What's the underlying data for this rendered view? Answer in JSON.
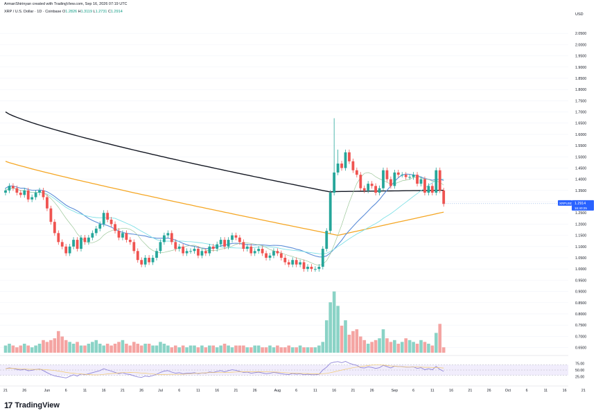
{
  "header": {
    "credit": "ArmanShirinyan created with TradingView.com, Sep 16, 2026 07:19 UTC",
    "symbol": "XRP / U.S. Dollar · 1D · Coinbase",
    "o_label": "O",
    "o_value": "1.2826",
    "h_label": "H",
    "h_value": "1.3119",
    "l_label": "L",
    "l_value": "1.2731",
    "c_label": "C",
    "c_value": "1.2914"
  },
  "footer": {
    "logo_text": "TradingView"
  },
  "colors": {
    "up": "#26a69a",
    "down": "#ef5350",
    "ma_black": "#131722",
    "ma_orange": "#f5a623",
    "ma_blue": "#5b8dd8",
    "ma_cyan": "#7fe0e6",
    "ma_green": "#9cc79a",
    "rsi": "#8e84d8"
  },
  "chart_data": {
    "type": "candlestick",
    "price_axis": {
      "currency": "USD",
      "ticks": [
        "0.6500",
        "0.7000",
        "0.7500",
        "0.8000",
        "0.8500",
        "0.9000",
        "0.9500",
        "1.0000",
        "1.0500",
        "1.1000",
        "1.1500",
        "1.2000",
        "1.2500",
        "1.3000",
        "1.3500",
        "1.4000",
        "1.4500",
        "1.5000",
        "1.5500",
        "1.6000",
        "1.6500",
        "1.7000",
        "1.7500",
        "1.8000",
        "1.8500",
        "1.9000",
        "1.9500",
        "2.0000",
        "2.0500"
      ],
      "range": [
        0.63,
        2.1
      ]
    },
    "last_price": {
      "label": "XRPUSD",
      "value": "1.2914",
      "countdown": "16:40:25"
    },
    "rsi_axis": {
      "ticks": [
        "75.00",
        "50.00",
        "25.00"
      ],
      "range": [
        0,
        100
      ],
      "upper_band": 70,
      "lower_band": 30
    },
    "time_axis": [
      {
        "label": "21",
        "i": 0
      },
      {
        "label": "26",
        "i": 5
      },
      {
        "label": "Jun",
        "i": 11
      },
      {
        "label": "6",
        "i": 16
      },
      {
        "label": "11",
        "i": 21
      },
      {
        "label": "16",
        "i": 26
      },
      {
        "label": "21",
        "i": 31
      },
      {
        "label": "26",
        "i": 36
      },
      {
        "label": "Jul",
        "i": 41
      },
      {
        "label": "6",
        "i": 46
      },
      {
        "label": "11",
        "i": 51
      },
      {
        "label": "16",
        "i": 56
      },
      {
        "label": "21",
        "i": 61
      },
      {
        "label": "26",
        "i": 66
      },
      {
        "label": "Aug",
        "i": 72
      },
      {
        "label": "6",
        "i": 77
      },
      {
        "label": "11",
        "i": 82
      },
      {
        "label": "16",
        "i": 87
      },
      {
        "label": "21",
        "i": 92
      },
      {
        "label": "26",
        "i": 97
      },
      {
        "label": "Sep",
        "i": 103
      },
      {
        "label": "6",
        "i": 108
      },
      {
        "label": "11",
        "i": 113
      },
      {
        "label": "16",
        "i": 118
      },
      {
        "label": "21",
        "i": 123
      },
      {
        "label": "26",
        "i": 128
      },
      {
        "label": "Oct",
        "i": 133
      },
      {
        "label": "6",
        "i": 138
      },
      {
        "label": "11",
        "i": 143
      },
      {
        "label": "16",
        "i": 148
      },
      {
        "label": "21",
        "i": 153
      }
    ],
    "closes": [
      1.35,
      1.37,
      1.36,
      1.34,
      1.33,
      1.35,
      1.31,
      1.32,
      1.34,
      1.35,
      1.32,
      1.27,
      1.21,
      1.16,
      1.12,
      1.1,
      1.07,
      1.1,
      1.13,
      1.09,
      1.14,
      1.12,
      1.14,
      1.16,
      1.18,
      1.2,
      1.25,
      1.22,
      1.2,
      1.17,
      1.14,
      1.16,
      1.13,
      1.12,
      1.08,
      1.04,
      1.02,
      1.05,
      1.03,
      1.05,
      1.08,
      1.12,
      1.15,
      1.16,
      1.12,
      1.09,
      1.1,
      1.07,
      1.08,
      1.08,
      1.09,
      1.06,
      1.08,
      1.07,
      1.1,
      1.09,
      1.11,
      1.13,
      1.1,
      1.13,
      1.15,
      1.14,
      1.12,
      1.09,
      1.1,
      1.07,
      1.08,
      1.09,
      1.07,
      1.05,
      1.06,
      1.08,
      1.07,
      1.05,
      1.03,
      1.02,
      1.04,
      1.02,
      1.03,
      1.0,
      1.01,
      1.0,
      1.0,
      1.01,
      1.09,
      1.17,
      1.34,
      1.43,
      1.47,
      1.45,
      1.52,
      1.48,
      1.44,
      1.42,
      1.36,
      1.35,
      1.38,
      1.37,
      1.34,
      1.36,
      1.44,
      1.4,
      1.37,
      1.43,
      1.42,
      1.42,
      1.41,
      1.41,
      1.42,
      1.38,
      1.4,
      1.34,
      1.37,
      1.34,
      1.44,
      1.35,
      1.29
    ],
    "volumes": [
      4,
      5,
      4,
      3,
      4,
      5,
      4,
      3,
      4,
      5,
      7,
      6,
      7,
      8,
      12,
      9,
      7,
      6,
      5,
      6,
      4,
      4,
      5,
      6,
      7,
      5,
      4,
      5,
      4,
      5,
      6,
      7,
      5,
      4,
      6,
      5,
      4,
      5,
      5,
      4,
      4,
      6,
      5,
      4,
      3,
      4,
      3,
      4,
      3,
      4,
      4,
      3,
      4,
      3,
      4,
      4,
      3,
      4,
      5,
      4,
      3,
      4,
      4,
      4,
      3,
      3,
      4,
      4,
      3,
      3,
      4,
      3,
      4,
      3,
      3,
      4,
      3,
      3,
      4,
      3,
      3,
      3,
      3,
      4,
      6,
      18,
      28,
      34,
      26,
      15,
      18,
      10,
      12,
      13,
      9,
      7,
      5,
      6,
      7,
      8,
      13,
      8,
      6,
      7,
      5,
      6,
      8,
      7,
      6,
      5,
      7,
      6,
      5,
      4,
      11,
      16,
      3
    ],
    "rsi": [
      55,
      58,
      56,
      52,
      50,
      53,
      47,
      49,
      52,
      54,
      48,
      40,
      33,
      28,
      25,
      23,
      20,
      26,
      32,
      27,
      35,
      32,
      36,
      40,
      44,
      48,
      55,
      50,
      46,
      41,
      36,
      40,
      35,
      33,
      28,
      24,
      22,
      27,
      25,
      29,
      34,
      41,
      46,
      48,
      42,
      38,
      40,
      36,
      38,
      38,
      40,
      36,
      39,
      38,
      43,
      41,
      45,
      48,
      43,
      48,
      51,
      49,
      45,
      41,
      42,
      38,
      40,
      42,
      39,
      36,
      38,
      41,
      39,
      36,
      34,
      33,
      37,
      34,
      36,
      32,
      34,
      32,
      32,
      34,
      50,
      61,
      76,
      80,
      82,
      78,
      83,
      76,
      71,
      68,
      59,
      58,
      62,
      60,
      56,
      59,
      68,
      63,
      58,
      65,
      63,
      63,
      61,
      61,
      62,
      56,
      59,
      51,
      55,
      51,
      64,
      52,
      45
    ]
  }
}
